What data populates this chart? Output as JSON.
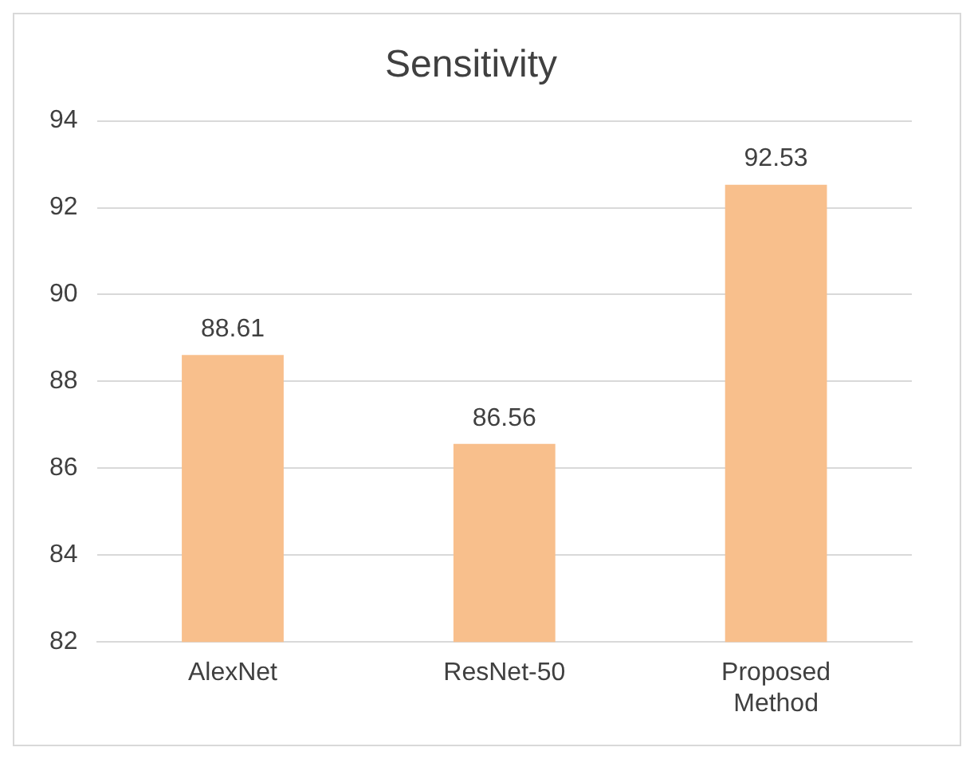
{
  "chart_data": {
    "type": "bar",
    "title": "Sensitivity",
    "categories": [
      "AlexNet",
      "ResNet-50",
      "Proposed Method"
    ],
    "values": [
      88.61,
      86.56,
      92.53
    ],
    "color": "#f8bf8c",
    "ylim": [
      82,
      94
    ],
    "yticks": [
      82,
      84,
      86,
      88,
      90,
      92,
      94
    ],
    "grid": "y",
    "data_labels": true,
    "legend": false
  }
}
